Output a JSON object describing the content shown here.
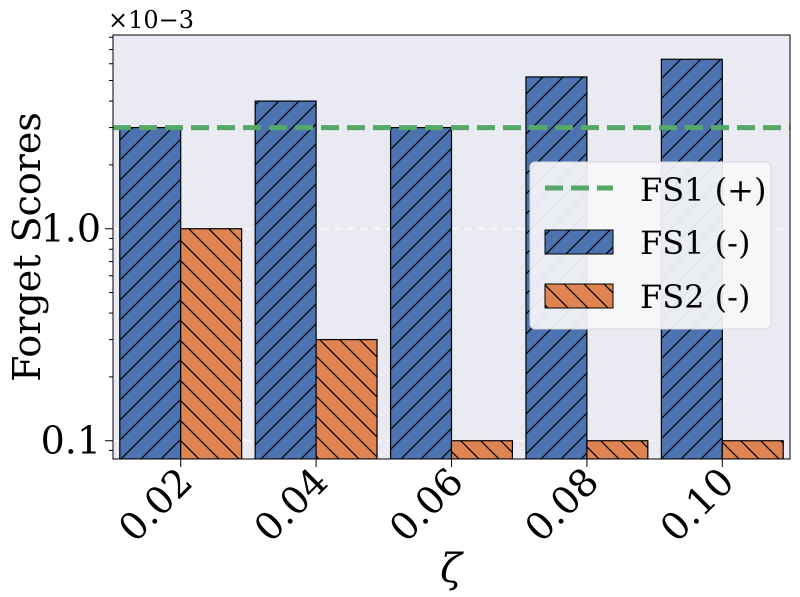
{
  "chart_data": {
    "type": "bar",
    "yscale": "log",
    "ylabel": "Forget Scores",
    "xlabel": "ζ",
    "y_multiplier": "×10−3",
    "categories": [
      "0.02",
      "0.04",
      "0.06",
      "0.08",
      "0.10"
    ],
    "yticks": [
      {
        "value": 0.1,
        "label": "0.1"
      },
      {
        "value": 1.0,
        "label": "1.0"
      }
    ],
    "ylim": [
      0.082,
      8.2
    ],
    "series": [
      {
        "name": "FS1 (-)",
        "values": [
          3.0,
          4.0,
          3.0,
          5.2,
          6.3
        ],
        "color": "#4c72b0",
        "hatch": "forward"
      },
      {
        "name": "FS2 (-)",
        "values": [
          1.0,
          0.3,
          0.1,
          0.1,
          0.1
        ],
        "color": "#dd8452",
        "hatch": "backward"
      }
    ],
    "reference_lines": [
      {
        "name": "FS1 (+)",
        "value": 3.0,
        "color": "#55a868",
        "style": "dashed"
      }
    ],
    "legend": {
      "placement": "right",
      "entries": [
        "FS1 (+)",
        "FS1 (-)",
        "FS2 (-)"
      ]
    },
    "grid": true,
    "background": "#eaeaf2"
  }
}
